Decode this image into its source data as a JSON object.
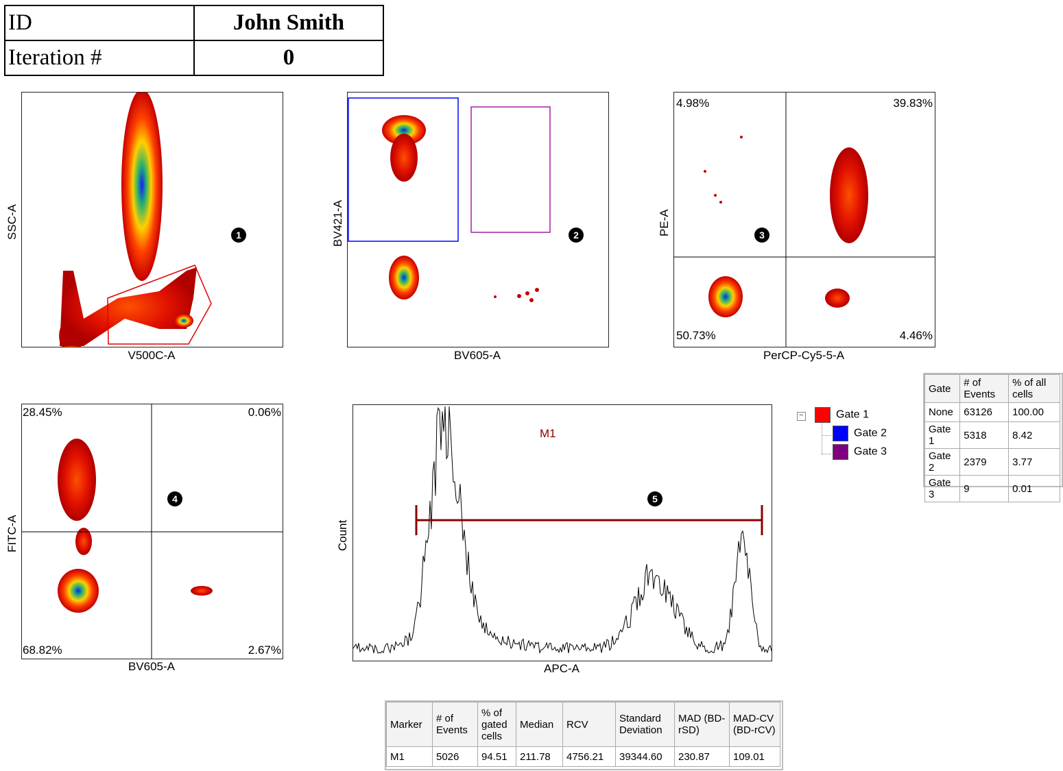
{
  "header": {
    "id_label": "ID",
    "id_value": "John Smith",
    "iteration_label": "Iteration #",
    "iteration_value": "0"
  },
  "plots": {
    "p1": {
      "xlabel": "V500C-A",
      "ylabel": "SSC-A",
      "badge": "1"
    },
    "p2": {
      "xlabel": "BV605-A",
      "ylabel": "BV421-A",
      "badge": "2"
    },
    "p3": {
      "xlabel": "PerCP-Cy5-5-A",
      "ylabel": "PE-A",
      "badge": "3",
      "q_ul": "4.98%",
      "q_ur": "39.83%",
      "q_ll": "50.73%",
      "q_lr": "4.46%"
    },
    "p4": {
      "xlabel": "BV605-A",
      "ylabel": "FITC-A",
      "badge": "4",
      "q_ul": "28.45%",
      "q_ur": "0.06%",
      "q_ll": "68.82%",
      "q_lr": "2.67%"
    },
    "p5": {
      "xlabel": "APC-A",
      "ylabel": "Count",
      "badge": "5",
      "marker_label": "M1"
    }
  },
  "legend": {
    "items": [
      {
        "label": "Gate 1",
        "color": "#ff0000"
      },
      {
        "label": "Gate 2",
        "color": "#0000ff"
      },
      {
        "label": "Gate 3",
        "color": "#800080"
      }
    ]
  },
  "gate_table": {
    "headers": [
      "Gate",
      "# of Events",
      "% of all cells"
    ],
    "rows": [
      [
        "None",
        "63126",
        "100.00"
      ],
      [
        "Gate 1",
        "5318",
        "8.42"
      ],
      [
        "Gate 2",
        "2379",
        "3.77"
      ],
      [
        "Gate 3",
        "9",
        "0.01"
      ]
    ]
  },
  "marker_table": {
    "headers": [
      "Marker",
      "# of Events",
      "% of gated cells",
      "Median",
      "RCV",
      "Standard Deviation",
      "MAD (BD-rSD)",
      "MAD-CV (BD-rCV)"
    ],
    "rows": [
      [
        "M1",
        "5026",
        "94.51",
        "211.78",
        "4756.21",
        "39344.60",
        "230.87",
        "109.01"
      ]
    ]
  },
  "chart_data": [
    {
      "type": "scatter",
      "xlabel": "V500C-A",
      "ylabel": "SSC-A",
      "description_points": "density plot"
    },
    {
      "type": "scatter",
      "xlabel": "BV605-A",
      "ylabel": "BV421-A"
    },
    {
      "type": "scatter",
      "xlabel": "PerCP-Cy5-5-A",
      "ylabel": "PE-A",
      "quadrants": {
        "upper_left": "4.98%",
        "upper_right": "39.83%",
        "lower_left": "50.73%",
        "lower_right": "4.46%"
      }
    },
    {
      "type": "scatter",
      "xlabel": "BV605-A",
      "ylabel": "FITC-A",
      "quadrants": {
        "upper_left": "28.45%",
        "upper_right": "0.06%",
        "lower_left": "68.82%",
        "lower_right": "2.67%"
      }
    },
    {
      "type": "line",
      "xlabel": "APC-A",
      "ylabel": "Count",
      "marker": "M1",
      "peaks_relative_x": [
        0.22,
        0.72,
        0.93
      ]
    }
  ]
}
